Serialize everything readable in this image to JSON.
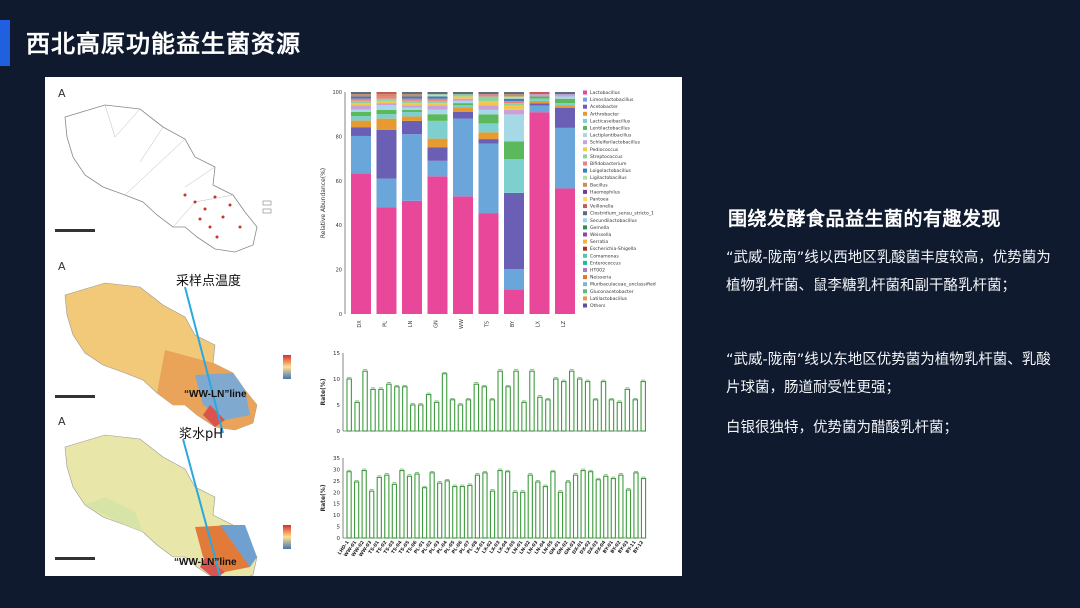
{
  "title": "西北高原功能益生菌资源",
  "maps": {
    "label_temperature": "采样点温度",
    "label_ph": "浆水pH",
    "line_label": "“WW-LN”line"
  },
  "right": {
    "heading": "围绕发酵食品益生菌的有趣发现",
    "p1": "“武威-陇南”线以西地区乳酸菌丰度较高，优势菌为植物乳杆菌、鼠李糖乳杆菌和副干酪乳杆菌；",
    "p2": "“武威-陇南”线以东地区优势菌为植物乳杆菌、乳酸片球菌，肠道耐受性更强；",
    "p3": "白银很独特，优势菌为醋酸乳杆菌；"
  },
  "abundance": {
    "ylabel": "Relative Abundance(%)",
    "yticks": [
      "100",
      "80",
      "60",
      "40",
      "20",
      "0"
    ],
    "groups": [
      "DX",
      "PL",
      "LN",
      "GN",
      "WW",
      "TS",
      "BY",
      "LX",
      "LZ"
    ],
    "legend": [
      "Lactobacillus",
      "Limosilactobacillus",
      "Acetobacter",
      "Arthrobacter",
      "Lacticaseibacillus",
      "Lentilactobacillus",
      "Lactiplantibacillus",
      "Schleiferilactobacillus",
      "Pediococcus",
      "Streptococcus",
      "Bifidobacterium",
      "Loigolactobacillus",
      "Ligilactobacillus",
      "Bacillus",
      "Haemophilus",
      "Pantoea",
      "Veillonella",
      "Clostridium_sensu_stricto_1",
      "Secundilactobacillus",
      "Gemella",
      "Weissella",
      "Serratia",
      "Escherichia-Shigella",
      "Comamonas",
      "Enterococcus",
      "HT002",
      "Neisseria",
      "Muribaculaceae_unclassified",
      "Gluconacetobacter",
      "Latilactobacillus",
      "Others"
    ],
    "colors": [
      "#e8479a",
      "#6aa6d9",
      "#6b5fb5",
      "#e69a2f",
      "#7ed0cf",
      "#5cb85c",
      "#a6d9e6",
      "#c9a0dc",
      "#f2c94c",
      "#8fd19e",
      "#f07e7e",
      "#3a7dc2",
      "#b4e0a8",
      "#d18a5a",
      "#7a3b8f",
      "#ffd86b",
      "#c25b5b",
      "#5d6d7e",
      "#9bd1f2",
      "#2e8b57",
      "#8e44ad",
      "#f5b041",
      "#a93226",
      "#48c9b0",
      "#1abc9c",
      "#af7ac5",
      "#dc7633",
      "#7fb3d5",
      "#52be80",
      "#eb984e",
      "#5b4ea6"
    ],
    "stacks": [
      [
        64,
        17,
        4,
        3,
        2,
        2,
        1,
        2,
        1,
        1,
        1,
        1,
        0,
        1,
        0,
        0,
        0,
        1
      ],
      [
        48,
        13,
        22,
        5,
        2,
        2,
        2,
        1,
        1,
        1,
        1,
        0,
        0,
        1,
        0,
        0,
        1,
        0
      ],
      [
        51,
        30,
        6,
        2,
        2,
        1,
        1,
        1,
        1,
        1,
        1,
        1,
        0,
        1,
        0,
        0,
        0,
        1
      ],
      [
        62,
        7,
        6,
        4,
        8,
        3,
        2,
        2,
        1,
        1,
        1,
        1,
        1,
        0,
        0,
        0,
        0,
        1
      ],
      [
        53,
        35,
        3,
        2,
        1,
        1,
        1,
        1,
        1,
        1,
        0,
        0,
        0,
        0,
        0,
        0,
        0,
        1
      ],
      [
        45,
        31,
        2,
        3,
        4,
        4,
        2,
        2,
        2,
        2,
        1,
        0,
        0,
        0,
        0,
        0,
        0,
        1
      ],
      [
        11,
        9,
        34,
        0,
        15,
        8,
        12,
        2,
        2,
        1,
        1,
        1,
        1,
        1,
        0,
        0,
        0,
        1
      ],
      [
        90,
        3,
        1,
        1,
        1,
        1,
        0,
        1,
        0,
        0,
        0,
        0,
        0,
        0,
        0,
        0,
        1,
        0
      ],
      [
        56,
        27,
        9,
        1,
        1,
        2,
        1,
        1,
        0,
        0,
        0,
        0,
        0,
        0,
        0,
        0,
        0,
        1
      ]
    ]
  },
  "rate_chart_1": {
    "ylabel": "Rate(%)",
    "ylim": [
      0,
      15
    ],
    "yticks": [
      "15",
      "10",
      "5",
      "0"
    ],
    "values": [
      10,
      5.5,
      11.5,
      8,
      8,
      9,
      8.5,
      8.5,
      5,
      5,
      7,
      5.5,
      11,
      6,
      5,
      6,
      9,
      8.5,
      6,
      11.5,
      8.5,
      11.5,
      5.5,
      11.5,
      6.5,
      6,
      10,
      9.5,
      11.5,
      10,
      9.5,
      6,
      9.5,
      6,
      5.5,
      8,
      6,
      9.5
    ]
  },
  "rate_chart_2": {
    "ylabel": "Rate(%)",
    "ylim": [
      0,
      35
    ],
    "yticks": [
      "35",
      "30",
      "25",
      "20",
      "15",
      "10",
      "5",
      "0"
    ],
    "values": [
      29,
      24.5,
      29.5,
      20.5,
      26.5,
      27.5,
      23.5,
      29.5,
      27,
      28,
      22,
      28.5,
      24,
      25,
      22.5,
      22.5,
      23,
      27.5,
      28.5,
      20.5,
      29.5,
      29,
      20,
      20,
      27.5,
      24.5,
      22.5,
      29,
      20,
      24.5,
      27.5,
      29.5,
      29,
      25.5,
      27,
      26,
      27.5,
      21,
      28.5,
      26
    ],
    "xlabels": [
      "LHD-1",
      "WW-01",
      "WW-02",
      "WW-03",
      "TS-01",
      "TS-02",
      "TS-03",
      "TS-04",
      "TS-05",
      "TS-06",
      "PL-01",
      "PL-02",
      "PL-03",
      "PL-04",
      "PL-05",
      "PL-06",
      "PL-07",
      "PL-08",
      "LX-01",
      "LX-02",
      "LX-03",
      "LX-04",
      "LX-05",
      "LN-01",
      "LN-02",
      "LN-03",
      "LN-04",
      "LN-05",
      "GN-01",
      "GN-02",
      "GN-03",
      "DX-01",
      "DX-02",
      "DX-03",
      "DX-04",
      "BY-01",
      "BY-02",
      "BY-03",
      "BY-11",
      "BY-12"
    ]
  }
}
